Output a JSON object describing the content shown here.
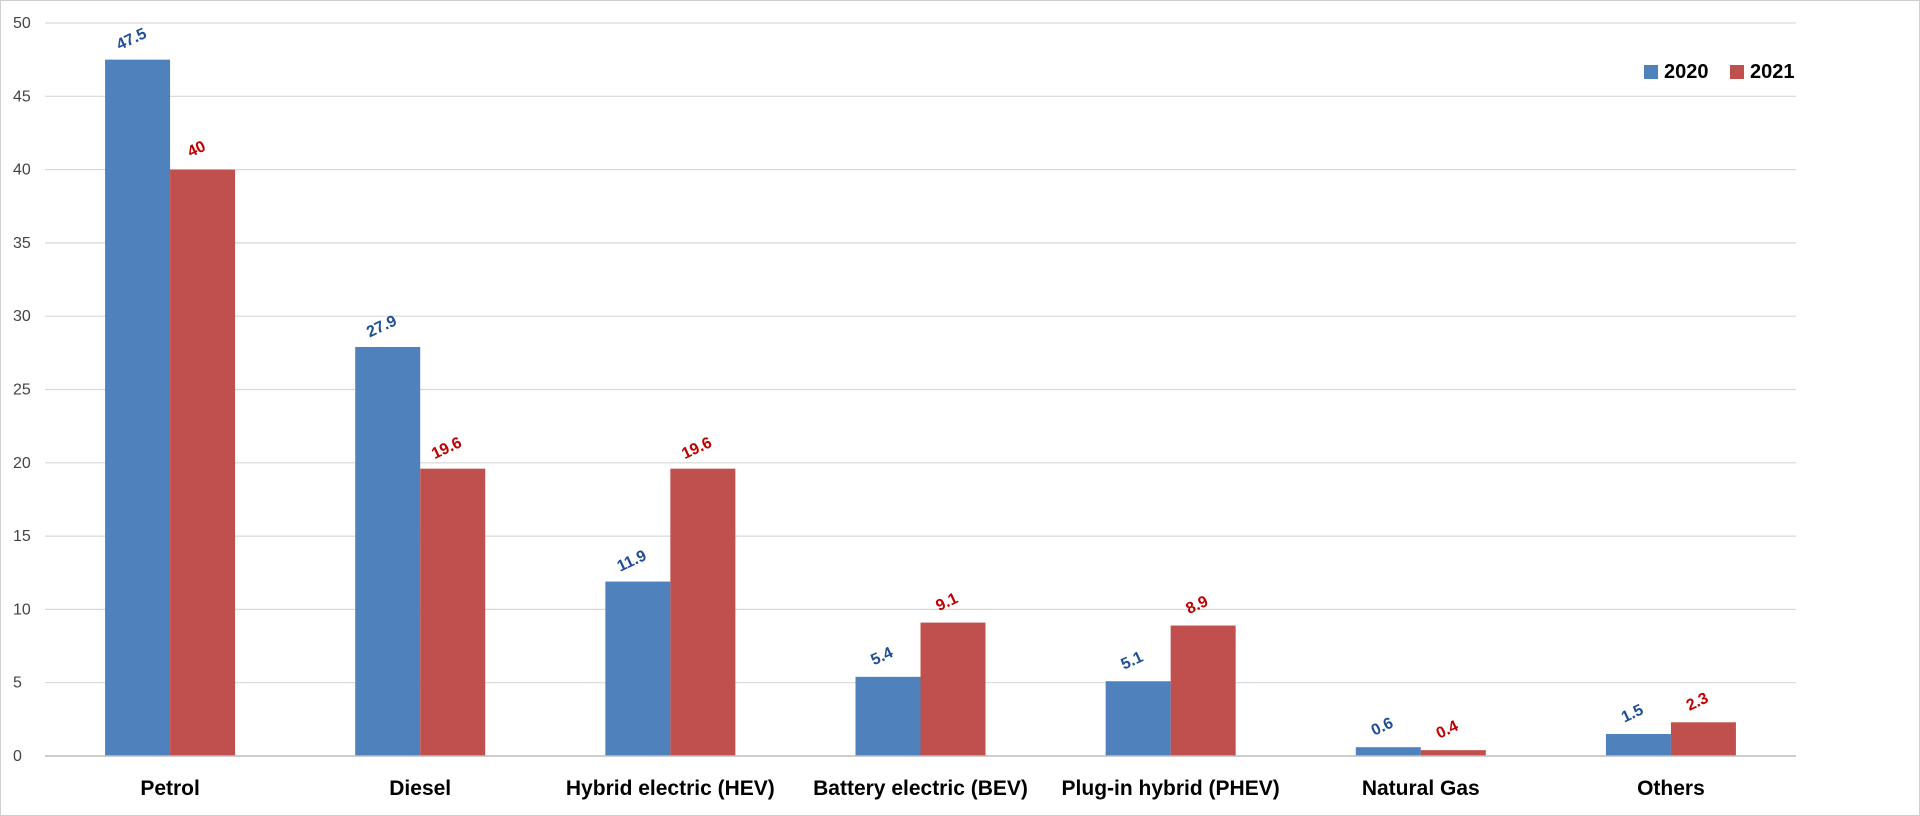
{
  "chart_data": {
    "type": "bar",
    "categories": [
      "Petrol",
      "Diesel",
      "Hybrid electric (HEV)",
      "Battery electric (BEV)",
      "Plug-in hybrid (PHEV)",
      "Natural Gas",
      "Others"
    ],
    "series": [
      {
        "name": "2020",
        "values": [
          47.5,
          27.9,
          11.9,
          5.4,
          5.1,
          0.6,
          1.5
        ],
        "labels": [
          "47.5",
          "27.9",
          "11.9",
          "5.4",
          "5.1",
          "0.6",
          "1.5"
        ],
        "color": "#4F81BD",
        "label_color": "#1F4E99"
      },
      {
        "name": "2021",
        "values": [
          40,
          19.6,
          19.6,
          9.1,
          8.9,
          0.4,
          2.3
        ],
        "labels": [
          "40",
          "19.6",
          "19.6",
          "9.1",
          "8.9",
          "0.4",
          "2.3"
        ],
        "color": "#C0504D",
        "label_color": "#C00000"
      }
    ],
    "title": "",
    "xlabel": "",
    "ylabel": "",
    "ylim": [
      0,
      50
    ],
    "yticks": [
      "0",
      "5",
      "10",
      "15",
      "20",
      "25",
      "30",
      "35",
      "40",
      "45",
      "50"
    ],
    "grid": true,
    "legend_position": "top-right",
    "gridline_color": "#D9D9D9"
  }
}
